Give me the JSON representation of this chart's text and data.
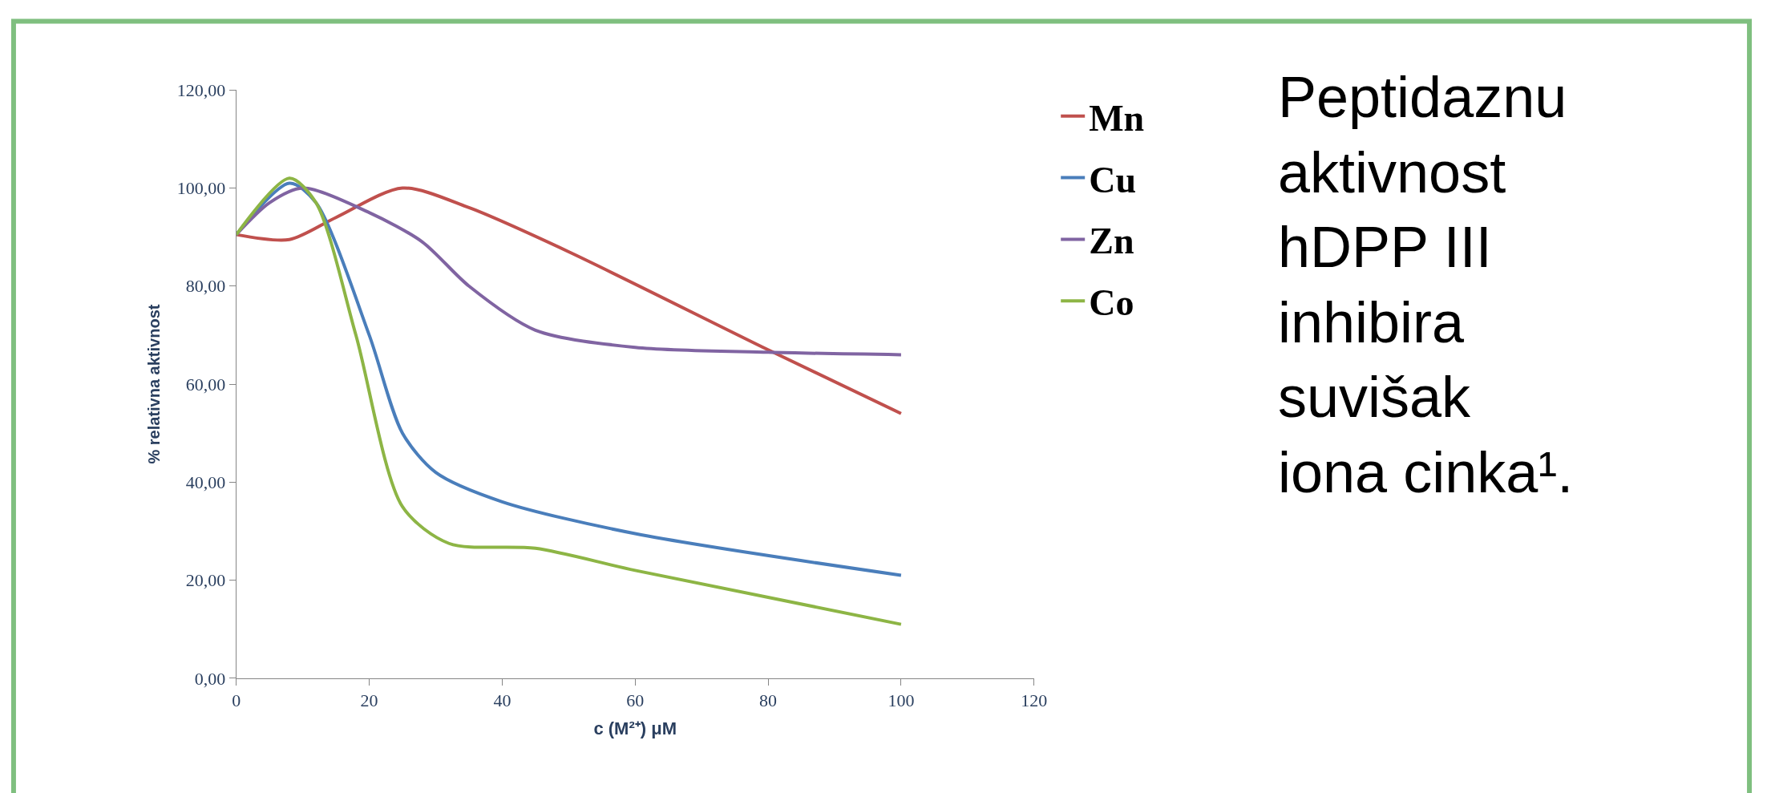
{
  "chart_data": {
    "type": "line",
    "xlabel": "c (M²⁺) μM",
    "ylabel": "% relativna aktivnost",
    "xlim": [
      0,
      120
    ],
    "xticks": [
      0,
      20,
      40,
      60,
      80,
      100,
      120
    ],
    "ylim": [
      0,
      120
    ],
    "yticks": [
      {
        "value": 0,
        "label": "0,00"
      },
      {
        "value": 20,
        "label": "20,00"
      },
      {
        "value": 40,
        "label": "40,00"
      },
      {
        "value": 60,
        "label": "60,00"
      },
      {
        "value": 80,
        "label": "80,00"
      },
      {
        "value": 100,
        "label": "100,00"
      },
      {
        "value": 120,
        "label": "120,00"
      }
    ],
    "legend": "right",
    "marker": "none",
    "line_style": "solid",
    "series": [
      {
        "name": "Mn",
        "color": "#c0504d",
        "x": [
          0,
          8,
          15,
          25,
          35,
          50,
          80,
          100
        ],
        "values": [
          90.5,
          89.5,
          94,
          100,
          96,
          87,
          67,
          54
        ]
      },
      {
        "name": "Cu",
        "color": "#4a7ebb",
        "x": [
          0,
          8,
          12,
          20,
          25,
          30,
          40,
          60,
          100
        ],
        "values": [
          90.5,
          101,
          97,
          70,
          50,
          42,
          36,
          29.5,
          21
        ]
      },
      {
        "name": "Zn",
        "color": "#8064a2",
        "x": [
          0,
          5,
          10,
          20,
          28,
          35,
          45,
          60,
          80,
          100
        ],
        "values": [
          90.5,
          97,
          100,
          95,
          89,
          80,
          71,
          67.5,
          66.5,
          66
        ]
      },
      {
        "name": "Co",
        "color": "#8db545",
        "x": [
          0,
          8,
          12,
          18,
          25,
          32,
          45,
          60,
          100
        ],
        "values": [
          90.5,
          102,
          97,
          70,
          35,
          27.5,
          26.5,
          22,
          11
        ]
      }
    ],
    "annotations": [
      "Peptidaznu\naktivnost\nhDPP III\ninhibira\nsuvišak\niona cinka¹."
    ]
  }
}
